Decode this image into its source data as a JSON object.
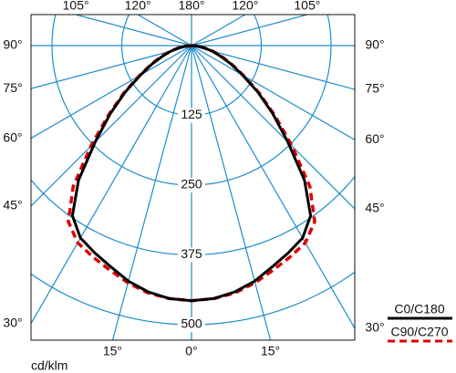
{
  "chart_data": {
    "type": "polar",
    "unit_label": "cd/klm",
    "angles": [
      0,
      5,
      10,
      15,
      20,
      25,
      30,
      35,
      40,
      45,
      50,
      55,
      60,
      65,
      70,
      75,
      80,
      85,
      90
    ],
    "series": [
      {
        "name": "C0/C180",
        "color": "#000000",
        "style": "solid",
        "values": [
          457,
          455,
          448,
          437,
          422,
          410,
          398,
          372,
          315,
          244,
          190,
          145,
          105,
          78,
          55,
          38,
          22,
          10,
          0
        ]
      },
      {
        "name": "C90/C270",
        "color": "#e00000",
        "style": "dashed",
        "values": [
          457,
          455,
          450,
          440,
          428,
          418,
          408,
          385,
          330,
          255,
          195,
          148,
          108,
          80,
          58,
          40,
          24,
          11,
          0
        ]
      }
    ],
    "rlim": [
      0,
      500
    ],
    "rticks": [
      125,
      250,
      375,
      500
    ],
    "angle_ticks": [
      {
        "value": 0,
        "label": "0°"
      },
      {
        "value": 15,
        "label": "15°"
      },
      {
        "value": 30,
        "label": "30°"
      },
      {
        "value": 45,
        "label": "45°"
      },
      {
        "value": 60,
        "label": "60°"
      },
      {
        "value": 75,
        "label": "75°"
      },
      {
        "value": 90,
        "label": "90°"
      },
      {
        "value": 105,
        "label": "105°"
      },
      {
        "value": 120,
        "label": "120°"
      },
      {
        "value": 180,
        "label": "180°"
      }
    ]
  }
}
